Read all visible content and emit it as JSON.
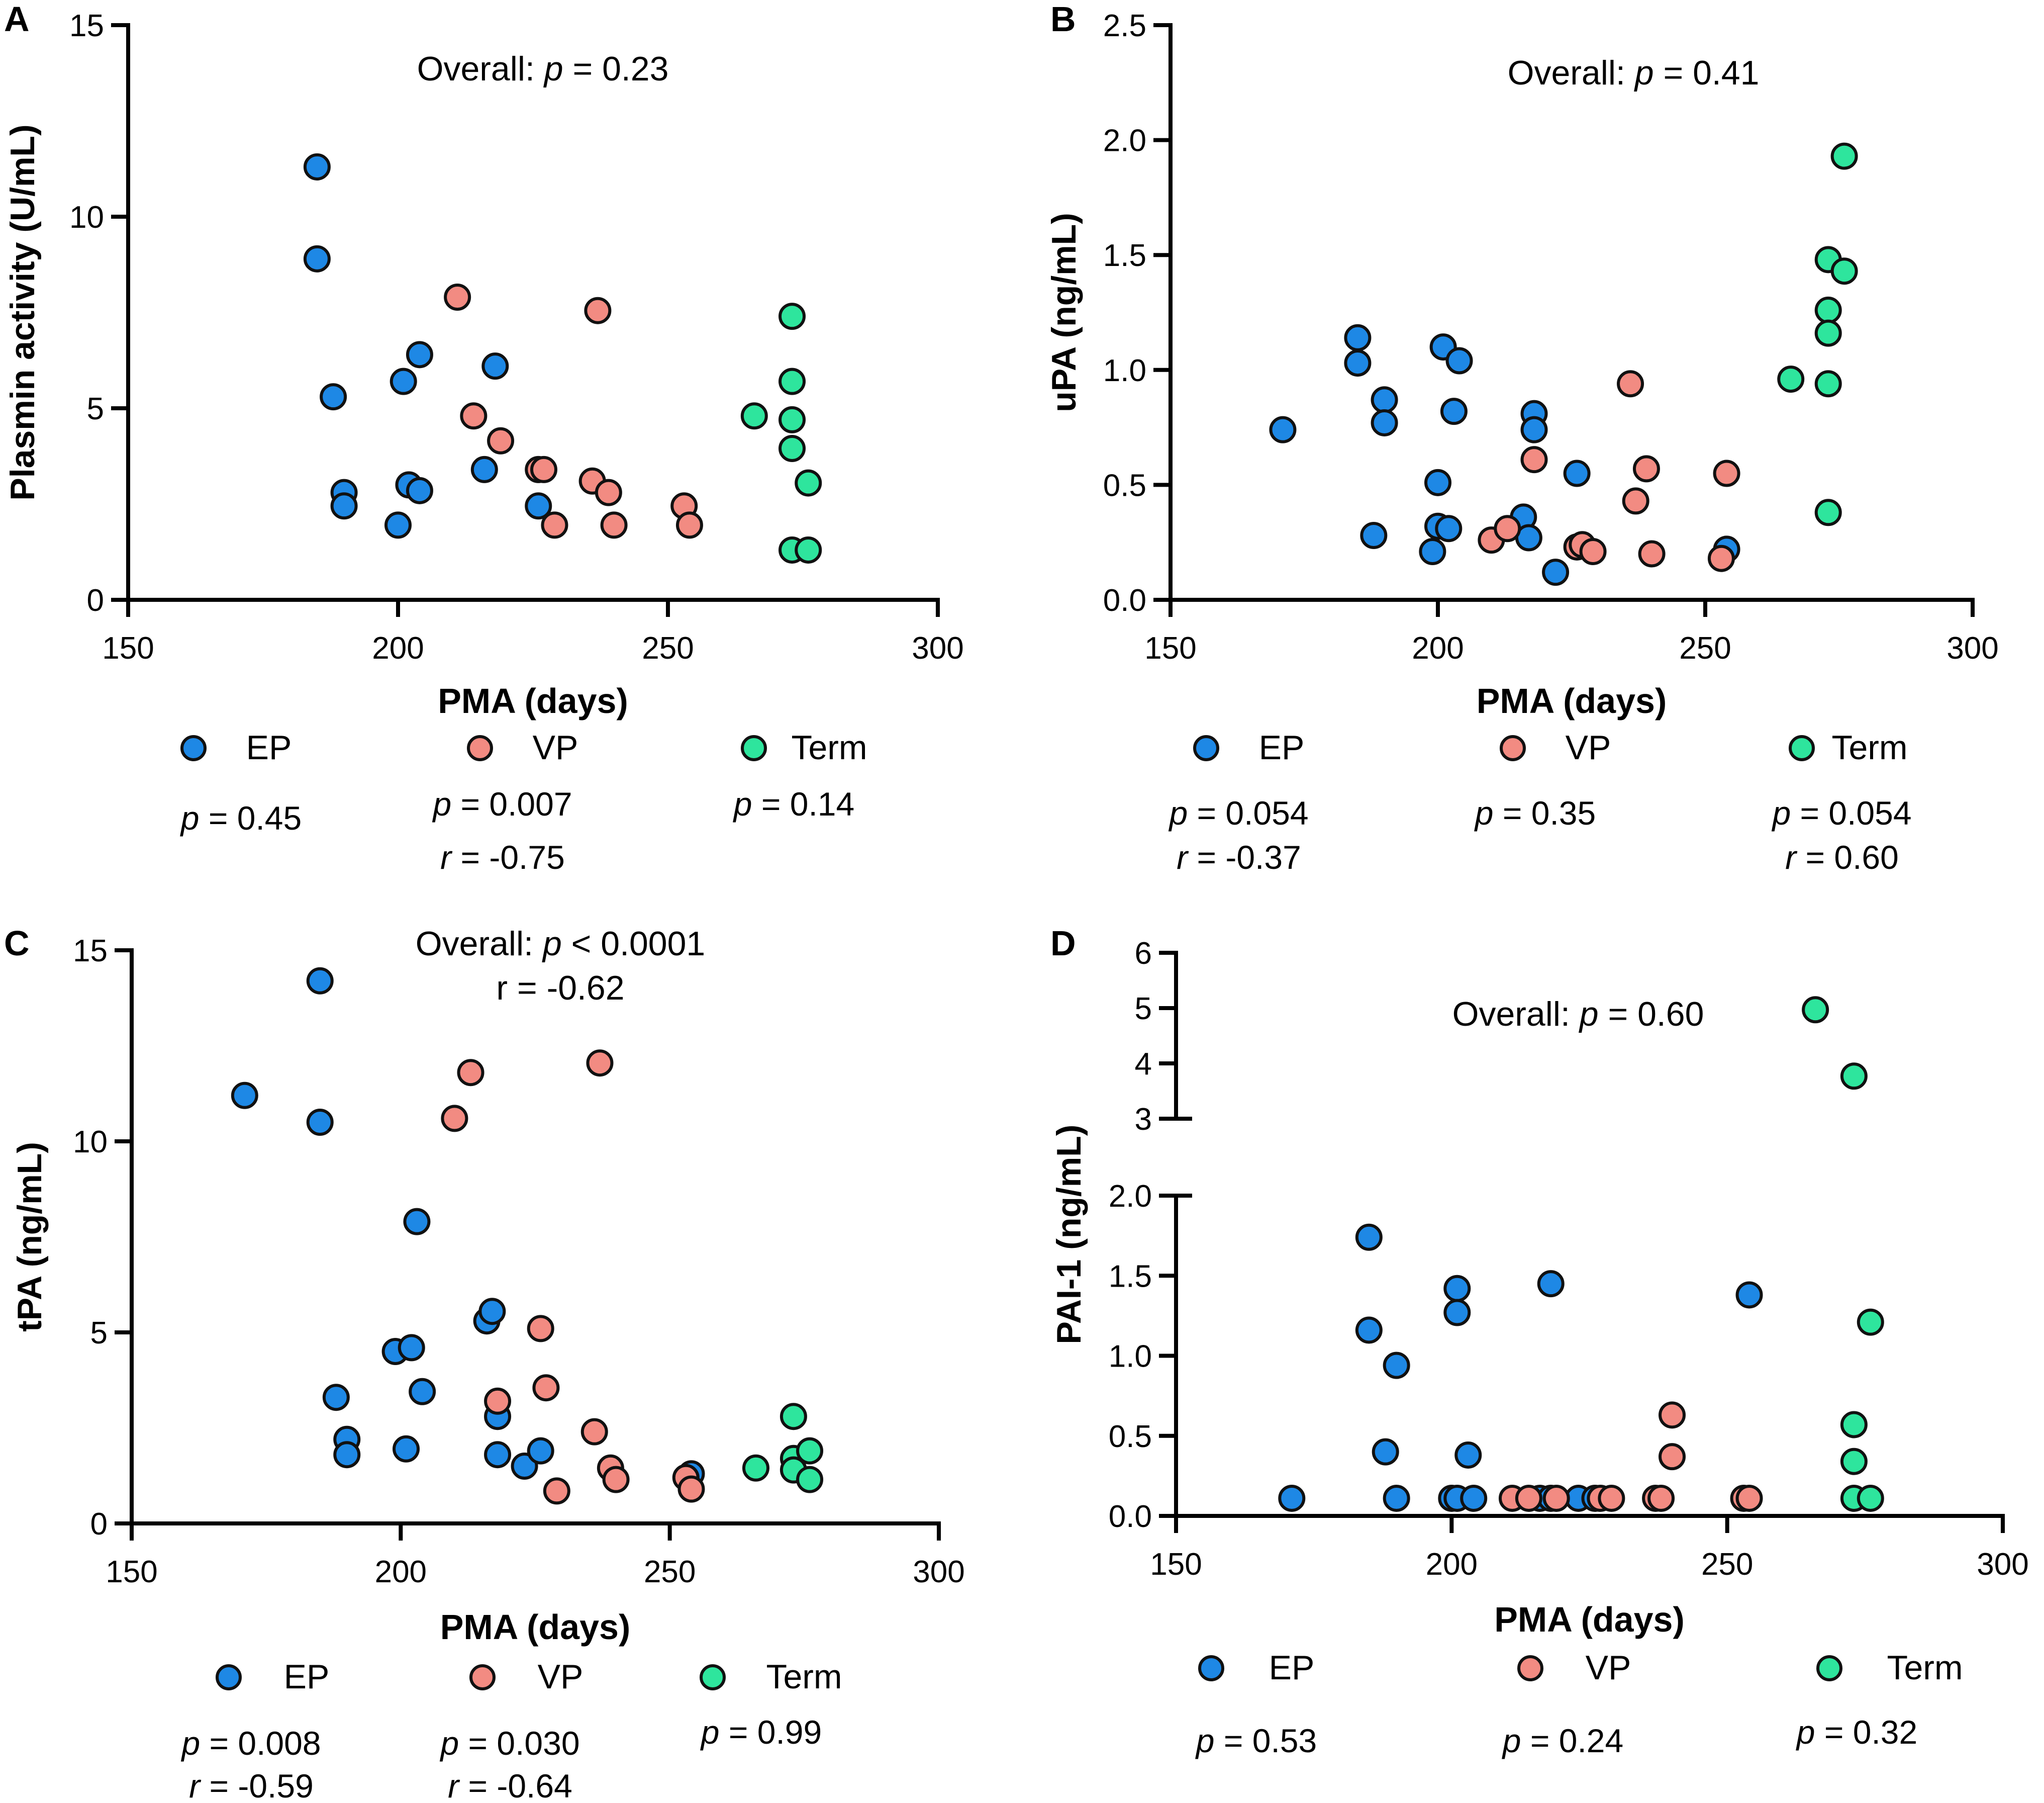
{
  "figure": {
    "colors": {
      "EP": "#1e88e5",
      "VP": "#f28b82",
      "Term": "#2ee59d",
      "outline": "#111111",
      "axis": "#000000"
    },
    "legend_labels": {
      "EP": "EP",
      "VP": "VP",
      "Term": "Term"
    }
  },
  "chart_data": [
    {
      "panel": "A",
      "type": "scatter",
      "title": "",
      "xlabel": "PMA (days)",
      "ylabel": "Plasmin activity (U/mL)",
      "xlim": [
        150,
        300
      ],
      "ylim": [
        0,
        15
      ],
      "xticks": [
        150,
        200,
        250,
        300
      ],
      "yticks": [
        0,
        5,
        10,
        15
      ],
      "overall": {
        "label": "Overall: ",
        "p": "p = 0.23",
        "r": ""
      },
      "series": [
        {
          "name": "EP",
          "points": [
            [
              185,
              11.3
            ],
            [
              185,
              8.9
            ],
            [
              188,
              5.3
            ],
            [
              190,
              2.8
            ],
            [
              190,
              2.45
            ],
            [
              200,
              1.95
            ],
            [
              201,
              5.7
            ],
            [
              202,
              3.0
            ],
            [
              204,
              6.4
            ],
            [
              204,
              2.85
            ],
            [
              216,
              3.4
            ],
            [
              218,
              6.1
            ],
            [
              226,
              2.45
            ]
          ]
        },
        {
          "name": "VP",
          "points": [
            [
              211,
              7.9
            ],
            [
              214,
              4.8
            ],
            [
              219,
              4.15
            ],
            [
              226,
              3.4
            ],
            [
              227,
              3.4
            ],
            [
              229,
              1.95
            ],
            [
              236,
              3.1
            ],
            [
              237,
              7.55
            ],
            [
              239,
              2.8
            ],
            [
              240,
              1.95
            ],
            [
              253,
              2.45
            ],
            [
              254,
              1.95
            ]
          ]
        },
        {
          "name": "Term",
          "points": [
            [
              266,
              4.8
            ],
            [
              273,
              7.4
            ],
            [
              273,
              5.7
            ],
            [
              273,
              4.7
            ],
            [
              273,
              3.95
            ],
            [
              273,
              1.3
            ],
            [
              276,
              3.05
            ],
            [
              276,
              1.3
            ]
          ]
        }
      ],
      "group_stats": [
        {
          "name": "EP",
          "p": "p = 0.45",
          "r": ""
        },
        {
          "name": "VP",
          "p": "p = 0.007",
          "r": "r = -0.75"
        },
        {
          "name": "Term",
          "p": "p = 0.14",
          "r": ""
        }
      ]
    },
    {
      "panel": "B",
      "type": "scatter",
      "title": "",
      "xlabel": "PMA (days)",
      "ylabel": "uPA (ng/mL)",
      "xlim": [
        150,
        300
      ],
      "ylim": [
        0,
        2.5
      ],
      "xticks": [
        150,
        200,
        250,
        300
      ],
      "yticks": [
        0.0,
        0.5,
        1.0,
        1.5,
        2.0,
        2.5
      ],
      "overall": {
        "label": "Overall: ",
        "p": "p =  0.41",
        "r": ""
      },
      "series": [
        {
          "name": "EP",
          "points": [
            [
              171,
              0.74
            ],
            [
              185,
              1.14
            ],
            [
              185,
              1.03
            ],
            [
              188,
              0.28
            ],
            [
              190,
              0.87
            ],
            [
              190,
              0.77
            ],
            [
              199,
              0.21
            ],
            [
              200,
              0.32
            ],
            [
              200,
              0.51
            ],
            [
              201,
              1.1
            ],
            [
              202,
              0.31
            ],
            [
              203,
              0.82
            ],
            [
              204,
              1.04
            ],
            [
              216,
              0.36
            ],
            [
              217,
              0.27
            ],
            [
              218,
              0.81
            ],
            [
              218,
              0.74
            ],
            [
              222,
              0.12
            ],
            [
              226,
              0.55
            ],
            [
              254,
              0.22
            ]
          ]
        },
        {
          "name": "VP",
          "points": [
            [
              210,
              0.26
            ],
            [
              213,
              0.31
            ],
            [
              218,
              0.61
            ],
            [
              226,
              0.23
            ],
            [
              227,
              0.24
            ],
            [
              229,
              0.21
            ],
            [
              236,
              0.94
            ],
            [
              237,
              0.43
            ],
            [
              239,
              0.57
            ],
            [
              240,
              0.2
            ],
            [
              253,
              0.18
            ],
            [
              254,
              0.55
            ]
          ]
        },
        {
          "name": "Term",
          "points": [
            [
              266,
              0.96
            ],
            [
              273,
              1.48
            ],
            [
              273,
              1.26
            ],
            [
              273,
              1.16
            ],
            [
              273,
              0.94
            ],
            [
              273,
              0.38
            ],
            [
              276,
              1.43
            ],
            [
              276,
              1.93
            ]
          ]
        }
      ],
      "group_stats": [
        {
          "name": "EP",
          "p": "p = 0.054",
          "r": "r = -0.37"
        },
        {
          "name": "VP",
          "p": "p = 0.35",
          "r": ""
        },
        {
          "name": "Term",
          "p": "p = 0.054",
          "r": "r = 0.60"
        }
      ]
    },
    {
      "panel": "C",
      "type": "scatter",
      "title": "",
      "xlabel": "PMA (days)",
      "ylabel": "tPA (ng/mL)",
      "xlim": [
        150,
        300
      ],
      "ylim": [
        0,
        15
      ],
      "xticks": [
        150,
        200,
        250,
        300
      ],
      "yticks": [
        0,
        5,
        10,
        15
      ],
      "overall": {
        "label": "Overall: ",
        "p": "p < 0.0001",
        "r": "r = -0.62"
      },
      "series": [
        {
          "name": "EP",
          "points": [
            [
              171,
              11.2
            ],
            [
              185,
              14.2
            ],
            [
              185,
              10.5
            ],
            [
              188,
              3.3
            ],
            [
              190,
              2.2
            ],
            [
              190,
              1.8
            ],
            [
              199,
              4.5
            ],
            [
              201,
              1.95
            ],
            [
              202,
              4.6
            ],
            [
              203,
              7.9
            ],
            [
              204,
              3.45
            ],
            [
              216,
              5.3
            ],
            [
              217,
              5.55
            ],
            [
              218,
              2.8
            ],
            [
              218,
              1.8
            ],
            [
              223,
              1.5
            ],
            [
              226,
              1.9
            ],
            [
              254,
              1.3
            ]
          ]
        },
        {
          "name": "VP",
          "points": [
            [
              210,
              10.6
            ],
            [
              213,
              11.8
            ],
            [
              218,
              3.2
            ],
            [
              226,
              5.1
            ],
            [
              227,
              3.55
            ],
            [
              229,
              0.85
            ],
            [
              236,
              2.4
            ],
            [
              237,
              12.05
            ],
            [
              239,
              1.45
            ],
            [
              240,
              1.15
            ],
            [
              253,
              1.2
            ],
            [
              254,
              0.9
            ]
          ]
        },
        {
          "name": "Term",
          "points": [
            [
              266,
              1.45
            ],
            [
              273,
              2.8
            ],
            [
              273,
              1.7
            ],
            [
              273,
              1.4
            ],
            [
              276,
              1.9
            ],
            [
              276,
              1.15
            ]
          ]
        }
      ],
      "group_stats": [
        {
          "name": "EP",
          "p": "p = 0.008",
          "r": "r = -0.59"
        },
        {
          "name": "VP",
          "p": "p = 0.030",
          "r": "r = -0.64"
        },
        {
          "name": "Term",
          "p": "p = 0.99",
          "r": ""
        }
      ]
    },
    {
      "panel": "D",
      "type": "scatter",
      "title": "",
      "xlabel": "PMA (days)",
      "ylabel": "PAI-1 (ng/mL)",
      "xlim": [
        150,
        300
      ],
      "ylim": [
        0,
        6
      ],
      "axis_break": {
        "lower": [
          0,
          2.0
        ],
        "upper": [
          3,
          6
        ]
      },
      "xticks": [
        150,
        200,
        250,
        300
      ],
      "yticks_lower": [
        0.0,
        0.5,
        1.0,
        1.5,
        2.0
      ],
      "yticks_upper": [
        3,
        4,
        5,
        6
      ],
      "overall": {
        "label": "Overall: ",
        "p": "p = 0.60",
        "r": ""
      },
      "series": [
        {
          "name": "EP",
          "points": [
            [
              171,
              0.11
            ],
            [
              185,
              1.74
            ],
            [
              185,
              1.16
            ],
            [
              188,
              0.4
            ],
            [
              190,
              0.94
            ],
            [
              190,
              0.11
            ],
            [
              200,
              0.11
            ],
            [
              201,
              0.11
            ],
            [
              201,
              1.42
            ],
            [
              201,
              1.27
            ],
            [
              203,
              0.38
            ],
            [
              204,
              0.11
            ],
            [
              216,
              0.11
            ],
            [
              218,
              1.45
            ],
            [
              218,
              0.11
            ],
            [
              223,
              0.11
            ],
            [
              226,
              0.11
            ],
            [
              254,
              1.38
            ]
          ]
        },
        {
          "name": "VP",
          "points": [
            [
              211,
              0.11
            ],
            [
              214,
              0.11
            ],
            [
              219,
              0.11
            ],
            [
              227,
              0.11
            ],
            [
              229,
              0.11
            ],
            [
              237,
              0.11
            ],
            [
              238,
              0.11
            ],
            [
              240,
              0.63
            ],
            [
              240,
              0.37
            ],
            [
              253,
              0.11
            ],
            [
              254,
              0.11
            ]
          ]
        },
        {
          "name": "Term",
          "points": [
            [
              266,
              4.97
            ],
            [
              273,
              3.77
            ],
            [
              276,
              1.21
            ],
            [
              273,
              0.57
            ],
            [
              273,
              0.34
            ],
            [
              273,
              0.11
            ],
            [
              276,
              0.11
            ]
          ]
        }
      ],
      "group_stats": [
        {
          "name": "EP",
          "p": "p = 0.53",
          "r": ""
        },
        {
          "name": "VP",
          "p": "p = 0.24",
          "r": ""
        },
        {
          "name": "Term",
          "p": "p = 0.32",
          "r": ""
        }
      ]
    }
  ]
}
